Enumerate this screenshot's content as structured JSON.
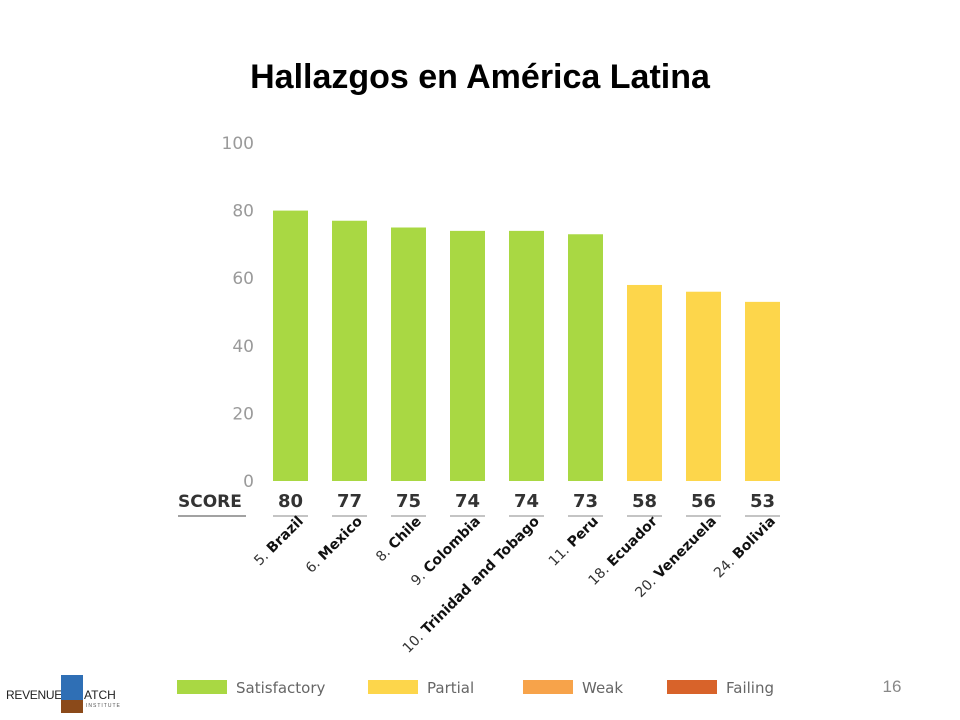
{
  "slide": {
    "title": "Hallazgos en América Latina",
    "number": "16",
    "logo": {
      "text_left": "REVENUE",
      "letter": "W",
      "text_right": "ATCH",
      "subtext": "INSTITUTE"
    }
  },
  "chart_data": {
    "type": "bar",
    "title": "",
    "xlabel": "",
    "ylabel": "",
    "ylim": [
      0,
      100
    ],
    "y_ticks": [
      0,
      20,
      40,
      60,
      80,
      100
    ],
    "y_tick_labels": [
      "0",
      "20",
      "40",
      "60",
      "80",
      "100"
    ],
    "score_label": "SCORE",
    "grid": false,
    "categories": [
      {
        "rank": "5.",
        "name": "Brazil"
      },
      {
        "rank": "6.",
        "name": "Mexico"
      },
      {
        "rank": "8.",
        "name": "Chile"
      },
      {
        "rank": "9.",
        "name": "Colombia"
      },
      {
        "rank": "10.",
        "name": "Trinidad and Tobago"
      },
      {
        "rank": "11.",
        "name": "Peru"
      },
      {
        "rank": "18.",
        "name": "Ecuador"
      },
      {
        "rank": "20.",
        "name": "Venezuela"
      },
      {
        "rank": "24.",
        "name": "Bolivia"
      }
    ],
    "values": [
      80,
      77,
      75,
      74,
      74,
      73,
      58,
      56,
      53
    ],
    "value_labels": [
      "80",
      "77",
      "75",
      "74",
      "74",
      "73",
      "58",
      "56",
      "53"
    ],
    "bar_classes": [
      "Satisfactory",
      "Satisfactory",
      "Satisfactory",
      "Satisfactory",
      "Satisfactory",
      "Satisfactory",
      "Partial",
      "Partial",
      "Partial"
    ],
    "legend_placement": "bottom",
    "legend": [
      {
        "label": "Satisfactory",
        "color": "#a9d843"
      },
      {
        "label": "Partial",
        "color": "#fdd64b"
      },
      {
        "label": "Weak",
        "color": "#f7a34a"
      },
      {
        "label": "Failing",
        "color": "#d8632a"
      }
    ]
  }
}
